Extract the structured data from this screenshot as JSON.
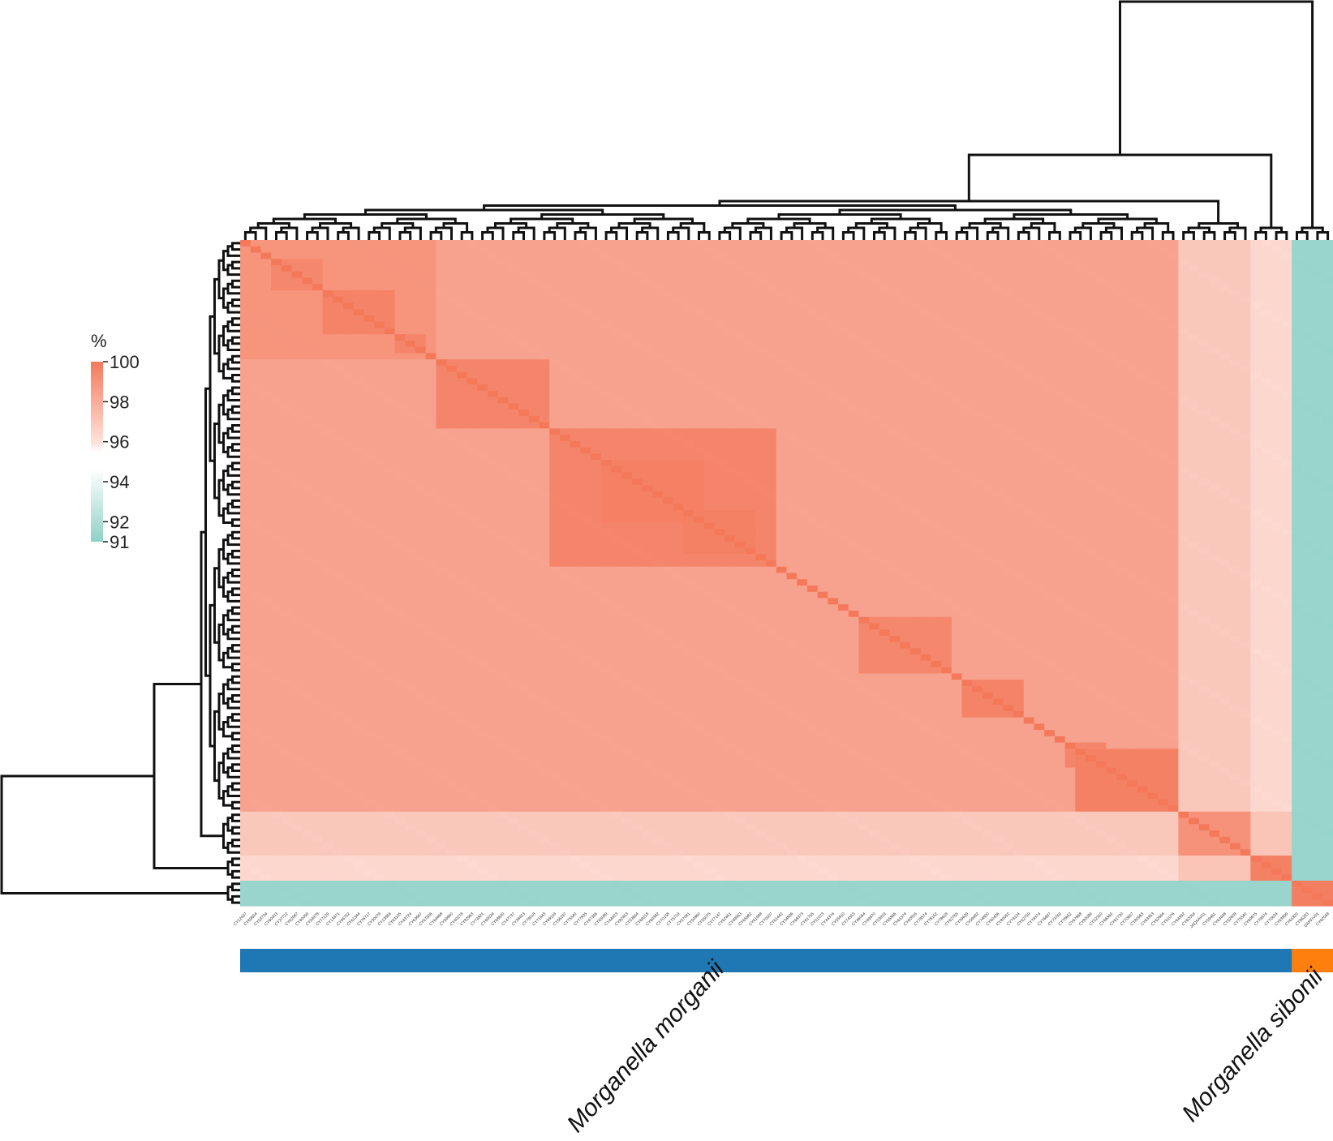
{
  "chart_data": {
    "type": "heatmap",
    "title": "",
    "colorbar": {
      "label": "%",
      "ticks": [
        100,
        98,
        96,
        94,
        92,
        91
      ],
      "range": [
        91,
        100
      ],
      "colors": {
        "high": "#f4795b",
        "mid": "#ffffff",
        "low": "#90d1c8"
      }
    },
    "column_labels": [
      "CY12437",
      "CY69654",
      "CY53734",
      "CY60003",
      "CY37722",
      "CY62987",
      "CY40059",
      "CY54978",
      "CY77129",
      "CY13471",
      "CY46752",
      "CY61344",
      "CY76717",
      "CY30079",
      "CY13864",
      "CY63105",
      "CY43724",
      "CY63667",
      "CY67906",
      "CY64468",
      "CY59660",
      "CY40278",
      "CY82963",
      "CY74821",
      "CY69034",
      "CY68600",
      "CY47737",
      "CY38423",
      "CY78018",
      "CY71943",
      "CY69119",
      "CY56297",
      "CY75540",
      "CY77835",
      "CY47356",
      "CY65089",
      "CY44923",
      "CY82453",
      "CY53664",
      "CY69218",
      "CY60382",
      "CY70158",
      "CY75719",
      "CY57081",
      "CY50860",
      "CY55075",
      "CY77147",
      "CY62451",
      "CY49963",
      "CY65982",
      "CY61988",
      "CY70007",
      "CY61442",
      "CY34806",
      "CY68373",
      "CY61755",
      "CY51073",
      "CY44374",
      "CY55410",
      "CY74553",
      "CY46064",
      "CY49870",
      "CY53919",
      "CY65866",
      "CY61574",
      "CY60816",
      "CY78574",
      "CY78152",
      "CY78618",
      "CY62765",
      "CY39629",
      "CY59092",
      "CY74800",
      "CY60436",
      "CY80092",
      "CY74124",
      "CY62759",
      "CY79374",
      "CY76697",
      "CY73769",
      "CY78652",
      "CY67668",
      "CY80089",
      "CY52310",
      "CY66560",
      "CY61730",
      "CY70667",
      "CY80963",
      "CY63353",
      "CY62664",
      "CY61076",
      "CY64392",
      "CY62054",
      "JAQAAV01",
      "CY59461",
      "CY63448",
      "CY52608",
      "CY75540",
      "CY60675",
      "CY79874",
      "CY70634",
      "CY63899",
      "CY61820",
      "CY86283",
      "DAPFIV01",
      "CY62048"
    ],
    "groups": [
      {
        "name": "Morganella morganii",
        "count": 102,
        "color": "#1f77b4"
      },
      {
        "name": "Morganella sibonii",
        "count": 4,
        "color": "#ff7f0e"
      }
    ],
    "clusters": [
      {
        "range": [
          0,
          90
        ],
        "within": 97.8
      },
      {
        "range": [
          91,
          97
        ],
        "within": 98.6
      },
      {
        "range": [
          98,
          101
        ],
        "within": 99.5
      },
      {
        "range": [
          102,
          105
        ],
        "within": 99.7
      }
    ],
    "blocks": [
      {
        "range": [
          3,
          7
        ],
        "within": 99.2
      },
      {
        "range": [
          8,
          14
        ],
        "within": 99.4
      },
      {
        "range": [
          15,
          17
        ],
        "within": 99.3
      },
      {
        "range": [
          19,
          29
        ],
        "within": 99.3
      },
      {
        "range": [
          30,
          51
        ],
        "within": 99.3
      },
      {
        "range": [
          35,
          44
        ],
        "within": 99.6
      },
      {
        "range": [
          43,
          49
        ],
        "within": 99.5
      },
      {
        "range": [
          0,
          18
        ],
        "within": 98.5
      },
      {
        "range": [
          30,
          51
        ],
        "within": 98.3
      },
      {
        "range": [
          60,
          68
        ],
        "within": 99.2
      },
      {
        "range": [
          70,
          75
        ],
        "within": 99.4
      },
      {
        "range": [
          80,
          83
        ],
        "within": 99.3
      },
      {
        "range": [
          81,
          90
        ],
        "within": 99.5
      }
    ],
    "between_clusters": {
      "morganii_main_vs_morganii_second": 96.4,
      "morganii_main_vs_morganii_third": 96.0,
      "morganii_second_vs_third": 96.5,
      "morganii_vs_sibonii": 92.2
    }
  }
}
